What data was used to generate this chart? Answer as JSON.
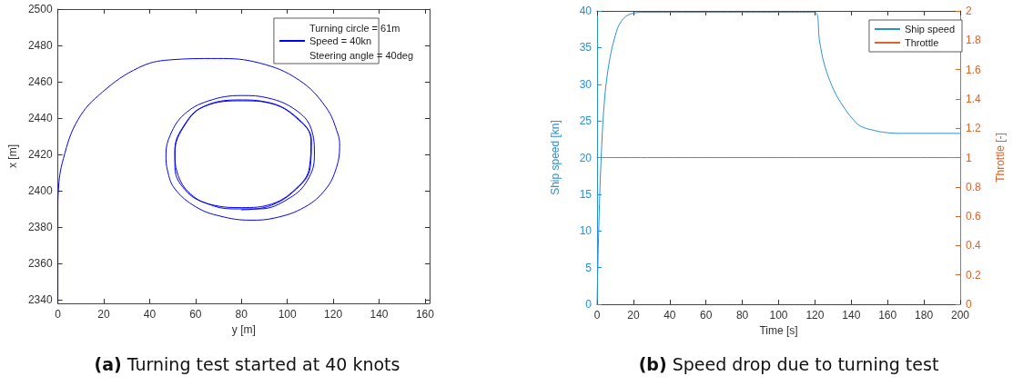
{
  "chart_data": [
    {
      "type": "line",
      "title": "(a) Turning test started at 40 knots",
      "xlabel": "y [m]",
      "ylabel": "x [m]",
      "xlim": [
        0,
        162
      ],
      "xticks": [
        0,
        20,
        40,
        60,
        80,
        100,
        120,
        140,
        160
      ],
      "ylim": [
        2338,
        2500
      ],
      "yticks": [
        2340,
        2360,
        2380,
        2400,
        2420,
        2440,
        2460,
        2480,
        2500
      ],
      "series": [
        {
          "name": "Speed = 40kn",
          "color": "#0000ff",
          "x": [
            0,
            0,
            0.2,
            2.4,
            8.9,
            19.5,
            35.3,
            48.4,
            69.5,
            87.9,
            105,
            116.8,
            122.1,
            122.8,
            121.4,
            116.8,
            107.6,
            94.5,
            83.9,
            70.8,
            60.3,
            51,
            47.8,
            47.1,
            49.1,
            55,
            65.5,
            80,
            91.8,
            103.7,
            110.3,
            111.8,
            108.9,
            101,
            87.9,
            76,
            65.5,
            56.3,
            51,
            51,
            55,
            62.9,
            78.7,
            91.8,
            105,
            110.3,
            109.6,
            105,
            93.2,
            80,
            68,
            58,
            52,
            51,
            55.5,
            64,
            80.5,
            93,
            104,
            110.5,
            110,
            104,
            92,
            80
          ],
          "values": [
            2338,
            2390,
            2400,
            2417.7,
            2439.4,
            2454.4,
            2467.8,
            2472,
            2472.8,
            2470.3,
            2461,
            2446,
            2431,
            2424.4,
            2412.7,
            2401,
            2391,
            2385,
            2383.8,
            2386,
            2391,
            2401,
            2411,
            2420,
            2431,
            2442,
            2449.4,
            2452.4,
            2451,
            2444.4,
            2434.4,
            2419.4,
            2406,
            2396,
            2390,
            2390,
            2392.7,
            2399.3,
            2412.7,
            2422.7,
            2436,
            2446,
            2450,
            2448.6,
            2439.4,
            2427.7,
            2412.7,
            2402.7,
            2392.7,
            2390.7,
            2392,
            2398,
            2410,
            2421,
            2436.5,
            2446.5,
            2449.5,
            2448,
            2440,
            2428,
            2413,
            2401,
            2391.5,
            2389.5
          ]
        }
      ],
      "annotations": [
        "Turning circle = 61m",
        "Steering angle = 40deg"
      ],
      "legend": "top right",
      "grid": false
    },
    {
      "type": "line",
      "title": "(b) Speed drop due to turning test",
      "xlabel": "Time [s]",
      "ylabel": "Ship speed [kn]",
      "y2label": "Throttle [-]",
      "xlim": [
        0,
        200
      ],
      "xticks": [
        0,
        20,
        40,
        60,
        80,
        100,
        120,
        140,
        160,
        180,
        200
      ],
      "ylim": [
        0,
        40
      ],
      "yticks": [
        0,
        5,
        10,
        15,
        20,
        25,
        30,
        35,
        40
      ],
      "y2lim": [
        0,
        2
      ],
      "y2ticks": [
        0,
        0.2,
        0.4,
        0.6,
        0.8,
        1,
        1.2,
        1.4,
        1.6,
        1.8,
        2
      ],
      "series": [
        {
          "name": "Ship speed",
          "color": "#2b8fd6",
          "x": [
            0,
            0.9,
            2.2,
            4,
            6.5,
            10,
            13.4,
            18.6,
            25.5,
            120,
            122.6,
            125.2,
            130.4,
            135.5,
            140.7,
            145,
            152.7,
            159.6,
            168.2,
            200
          ],
          "values": [
            0,
            10,
            19.6,
            27.5,
            32.7,
            36.6,
            38.6,
            39.6,
            39.8,
            39.8,
            35.8,
            32.7,
            29.2,
            27,
            25.3,
            24.3,
            23.7,
            23.4,
            23.3,
            23.3
          ]
        },
        {
          "name": "Throttle",
          "color": "#e0622b",
          "axis": "y2",
          "x": [
            0,
            200
          ],
          "values": [
            1,
            1
          ]
        }
      ],
      "legend": "top right",
      "grid": false
    }
  ]
}
